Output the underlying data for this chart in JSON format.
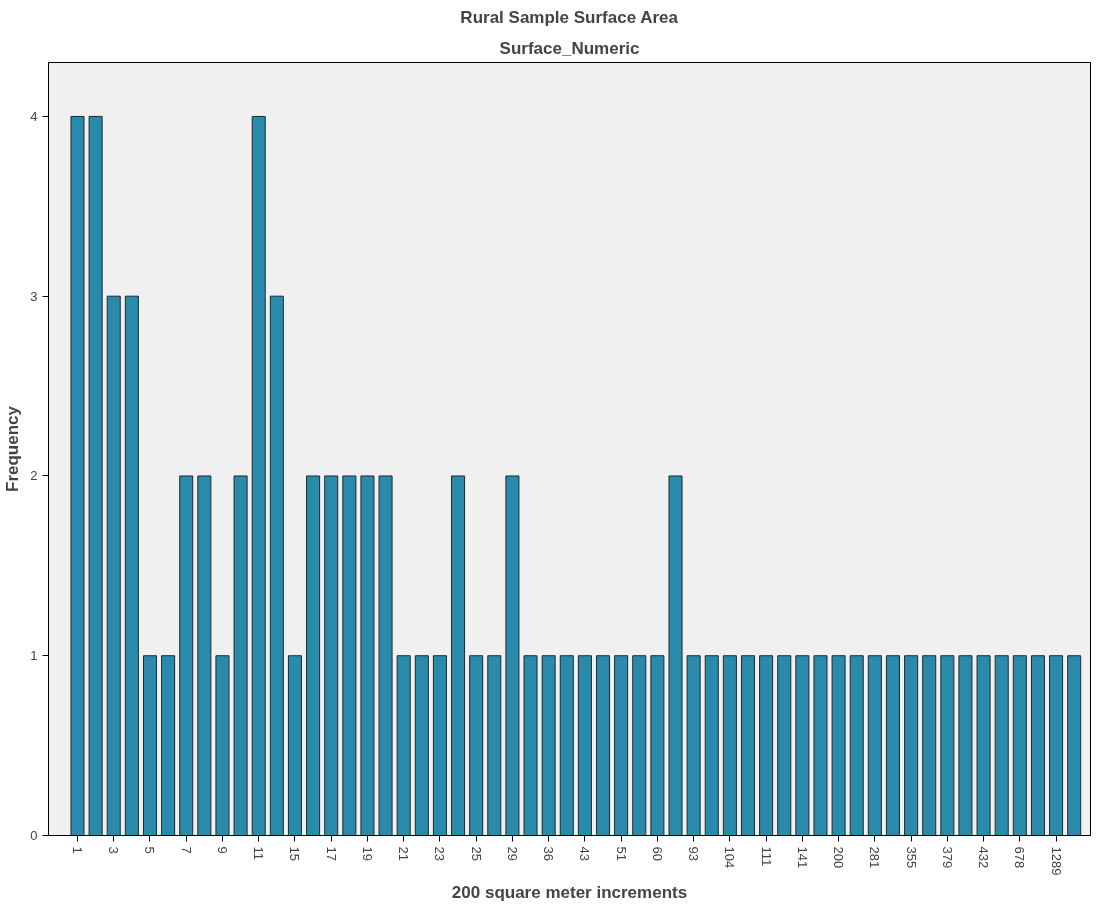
{
  "chart_data": {
    "type": "bar",
    "title": "Rural Sample Surface Area",
    "subtitle": "Surface_Numeric",
    "xlabel": "200 square meter increments",
    "ylabel": "Frequency",
    "categories": [
      "1",
      null,
      "3",
      null,
      "5",
      null,
      "7",
      null,
      "9",
      null,
      "11",
      null,
      "15",
      null,
      "17",
      null,
      "19",
      null,
      "21",
      null,
      "23",
      null,
      "25",
      null,
      "29",
      null,
      "36",
      null,
      "43",
      null,
      "51",
      null,
      "60",
      null,
      "93",
      null,
      "104",
      null,
      "111",
      null,
      "141",
      null,
      "200",
      null,
      "281",
      null,
      "355",
      null,
      "379",
      null,
      "432",
      null,
      "678",
      null,
      "1289",
      null
    ],
    "values": [
      4,
      4,
      3,
      3,
      1,
      1,
      2,
      2,
      1,
      2,
      4,
      3,
      1,
      2,
      2,
      2,
      2,
      2,
      1,
      1,
      1,
      2,
      1,
      1,
      2,
      1,
      1,
      1,
      1,
      1,
      1,
      1,
      1,
      2,
      1,
      1,
      1,
      1,
      1,
      1,
      1,
      1,
      1,
      1,
      1,
      1,
      1,
      1,
      1,
      1,
      1,
      1,
      1,
      1,
      1,
      1
    ],
    "color": "#2a8aac",
    "ylim": [
      0,
      4.3
    ],
    "yticks": [
      0,
      1,
      2,
      3,
      4
    ],
    "grid": false
  }
}
